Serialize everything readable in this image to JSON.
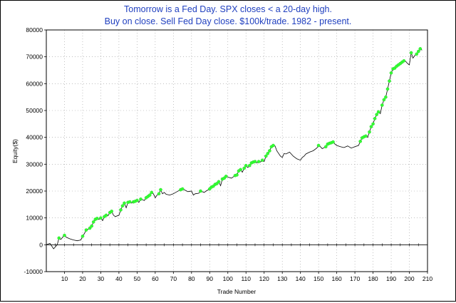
{
  "chart_data": {
    "type": "line",
    "title_lines": [
      "Tomorrow is a Fed Day. SPX closes < a 20-day high.",
      "Buy on close. Sell Fed Day close. $100k/trade. 1982 - present."
    ],
    "xlabel": "Trade Number",
    "ylabel": "Equity($)",
    "xlim": [
      0,
      210
    ],
    "ylim": [
      -10000,
      80000
    ],
    "xticks": [
      "10",
      "20",
      "30",
      "40",
      "50",
      "60",
      "70",
      "80",
      "90",
      "100",
      "110",
      "120",
      "130",
      "140",
      "150",
      "160",
      "170",
      "180",
      "190",
      "200",
      "210"
    ],
    "xtick_values": [
      10,
      20,
      30,
      40,
      50,
      60,
      70,
      80,
      90,
      100,
      110,
      120,
      130,
      140,
      150,
      160,
      170,
      180,
      190,
      200,
      210
    ],
    "yticks": [
      "-10000",
      "0",
      "10000",
      "20000",
      "30000",
      "40000",
      "50000",
      "60000",
      "70000",
      "80000"
    ],
    "ytick_values": [
      -10000,
      0,
      10000,
      20000,
      30000,
      40000,
      50000,
      60000,
      70000,
      80000
    ],
    "grid": true,
    "line_color": "#000000",
    "marker_color": "#33ff33",
    "equity_points": [
      [
        0,
        0
      ],
      [
        2,
        500
      ],
      [
        4,
        -1500
      ],
      [
        6,
        0
      ],
      [
        7,
        2500
      ],
      [
        8,
        2000
      ],
      [
        9,
        2800
      ],
      [
        10,
        3500
      ],
      [
        11,
        2800
      ],
      [
        13,
        2200
      ],
      [
        15,
        1800
      ],
      [
        17,
        1500
      ],
      [
        19,
        1800
      ],
      [
        20,
        3200
      ],
      [
        21,
        4200
      ],
      [
        22,
        5500
      ],
      [
        23,
        5800
      ],
      [
        24,
        6200
      ],
      [
        25,
        7000
      ],
      [
        26,
        8500
      ],
      [
        27,
        9500
      ],
      [
        28,
        9800
      ],
      [
        29,
        9500
      ],
      [
        30,
        10000
      ],
      [
        31,
        9000
      ],
      [
        32,
        10500
      ],
      [
        33,
        11000
      ],
      [
        34,
        10800
      ],
      [
        35,
        12000
      ],
      [
        36,
        12500
      ],
      [
        37,
        11000
      ],
      [
        38,
        10500
      ],
      [
        40,
        11000
      ],
      [
        41,
        13000
      ],
      [
        42,
        14500
      ],
      [
        43,
        15500
      ],
      [
        44,
        13800
      ],
      [
        45,
        15800
      ],
      [
        46,
        16000
      ],
      [
        47,
        15500
      ],
      [
        48,
        16000
      ],
      [
        49,
        16200
      ],
      [
        50,
        16500
      ],
      [
        51,
        15800
      ],
      [
        52,
        17000
      ],
      [
        53,
        16800
      ],
      [
        54,
        16500
      ],
      [
        55,
        17500
      ],
      [
        56,
        18000
      ],
      [
        57,
        18500
      ],
      [
        58,
        19500
      ],
      [
        59,
        19000
      ],
      [
        60,
        17500
      ],
      [
        61,
        18500
      ],
      [
        62,
        19000
      ],
      [
        63,
        20500
      ],
      [
        64,
        19000
      ],
      [
        65,
        19500
      ],
      [
        66,
        18800
      ],
      [
        68,
        18500
      ],
      [
        70,
        19000
      ],
      [
        72,
        19800
      ],
      [
        74,
        20500
      ],
      [
        75,
        20800
      ],
      [
        76,
        20500
      ],
      [
        78,
        19800
      ],
      [
        80,
        20000
      ],
      [
        81,
        18500
      ],
      [
        82,
        19000
      ],
      [
        84,
        19200
      ],
      [
        85,
        20000
      ],
      [
        87,
        19500
      ],
      [
        88,
        20000
      ],
      [
        90,
        20800
      ],
      [
        91,
        21500
      ],
      [
        92,
        21800
      ],
      [
        93,
        22500
      ],
      [
        94,
        22800
      ],
      [
        95,
        23500
      ],
      [
        96,
        22000
      ],
      [
        97,
        24500
      ],
      [
        98,
        24800
      ],
      [
        99,
        25500
      ],
      [
        100,
        25200
      ],
      [
        102,
        24800
      ],
      [
        104,
        25800
      ],
      [
        105,
        26000
      ],
      [
        106,
        27500
      ],
      [
        107,
        28000
      ],
      [
        108,
        27000
      ],
      [
        109,
        28500
      ],
      [
        110,
        29500
      ],
      [
        111,
        28800
      ],
      [
        112,
        29500
      ],
      [
        113,
        30500
      ],
      [
        114,
        30800
      ],
      [
        115,
        31000
      ],
      [
        116,
        30500
      ],
      [
        117,
        31000
      ],
      [
        118,
        30800
      ],
      [
        119,
        31500
      ],
      [
        120,
        31000
      ],
      [
        121,
        33000
      ],
      [
        122,
        34000
      ],
      [
        123,
        35000
      ],
      [
        124,
        36500
      ],
      [
        125,
        37000
      ],
      [
        126,
        36800
      ],
      [
        127,
        35000
      ],
      [
        128,
        34000
      ],
      [
        129,
        33000
      ],
      [
        130,
        32500
      ],
      [
        131,
        34000
      ],
      [
        132,
        33800
      ],
      [
        134,
        34500
      ],
      [
        136,
        33000
      ],
      [
        138,
        32000
      ],
      [
        140,
        31500
      ],
      [
        141,
        32500
      ],
      [
        142,
        33000
      ],
      [
        143,
        33800
      ],
      [
        145,
        34500
      ],
      [
        147,
        35000
      ],
      [
        149,
        36000
      ],
      [
        150,
        37000
      ],
      [
        151,
        36500
      ],
      [
        152,
        35800
      ],
      [
        154,
        36500
      ],
      [
        155,
        37500
      ],
      [
        156,
        37800
      ],
      [
        157,
        38000
      ],
      [
        158,
        38300
      ],
      [
        159,
        37500
      ],
      [
        160,
        37000
      ],
      [
        162,
        36500
      ],
      [
        164,
        36200
      ],
      [
        166,
        36800
      ],
      [
        168,
        36000
      ],
      [
        170,
        36500
      ],
      [
        172,
        37000
      ],
      [
        173,
        38500
      ],
      [
        174,
        39800
      ],
      [
        175,
        40200
      ],
      [
        176,
        40500
      ],
      [
        177,
        40000
      ],
      [
        178,
        42000
      ],
      [
        179,
        44000
      ],
      [
        180,
        45000
      ],
      [
        181,
        47000
      ],
      [
        182,
        48500
      ],
      [
        183,
        49500
      ],
      [
        184,
        48800
      ],
      [
        185,
        52000
      ],
      [
        186,
        54000
      ],
      [
        187,
        55000
      ],
      [
        188,
        58000
      ],
      [
        189,
        61000
      ],
      [
        190,
        64000
      ],
      [
        191,
        65500
      ],
      [
        192,
        65800
      ],
      [
        193,
        66500
      ],
      [
        194,
        67000
      ],
      [
        195,
        67500
      ],
      [
        196,
        68000
      ],
      [
        197,
        68500
      ],
      [
        198,
        68300
      ],
      [
        199,
        67500
      ],
      [
        200,
        67000
      ],
      [
        201,
        71500
      ],
      [
        202,
        69500
      ],
      [
        203,
        70500
      ],
      [
        204,
        71000
      ],
      [
        205,
        72000
      ],
      [
        206,
        73000
      ],
      [
        207,
        72500
      ]
    ],
    "winning_trades": [
      7,
      10,
      20,
      22,
      24,
      25,
      26,
      27,
      28,
      30,
      32,
      33,
      35,
      36,
      41,
      42,
      43,
      45,
      46,
      48,
      49,
      50,
      52,
      55,
      56,
      57,
      58,
      62,
      63,
      74,
      75,
      85,
      90,
      91,
      92,
      93,
      94,
      95,
      97,
      98,
      99,
      104,
      105,
      106,
      107,
      109,
      110,
      112,
      113,
      114,
      115,
      117,
      119,
      121,
      122,
      123,
      124,
      125,
      150,
      154,
      155,
      156,
      157,
      158,
      173,
      174,
      175,
      176,
      178,
      179,
      180,
      181,
      182,
      183,
      185,
      186,
      187,
      188,
      189,
      190,
      191,
      192,
      193,
      194,
      195,
      196,
      197,
      201,
      204,
      205,
      206
    ]
  }
}
